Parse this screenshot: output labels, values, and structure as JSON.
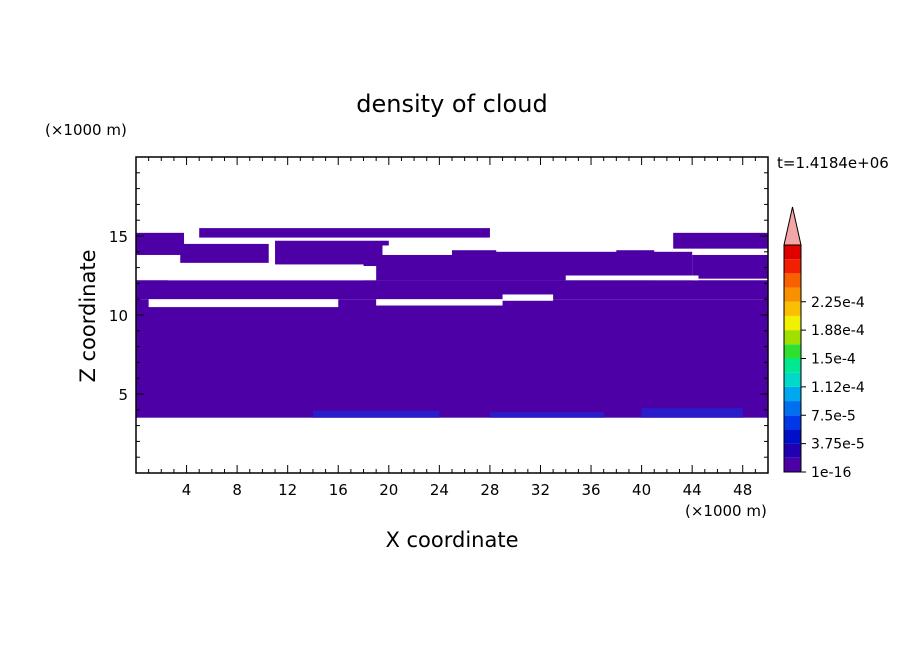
{
  "chart_data": {
    "type": "heatmap",
    "title": "density of cloud",
    "xlabel": "X coordinate",
    "ylabel": "Z coordinate",
    "x_unit": "(×1000 m)",
    "z_unit": "(×1000 m)",
    "time_label": "t=1.4184e+06",
    "xlim": [
      0,
      50
    ],
    "zlim": [
      0,
      20
    ],
    "x_ticks": [
      4,
      8,
      12,
      16,
      20,
      24,
      28,
      32,
      36,
      40,
      44,
      48
    ],
    "z_ticks": [
      5,
      10,
      15
    ],
    "colorbar": {
      "labels": [
        "1e-16",
        "3.75e-5",
        "7.5e-5",
        "1.12e-4",
        "1.5e-4",
        "1.88e-4",
        "2.25e-4"
      ],
      "colors": [
        "#4d00a6",
        "#2000b0",
        "#0010c8",
        "#0038e8",
        "#0070f0",
        "#00a8f0",
        "#00d8c8",
        "#00e890",
        "#30e030",
        "#a0e000",
        "#f0f000",
        "#f8c000",
        "#f89000",
        "#f86000",
        "#f02000",
        "#e00000"
      ],
      "extend_color": "#f4a6a6"
    },
    "fill_color": "#4d00a6",
    "deep_color": "#2a1cc8",
    "cloud_regions": [
      {
        "x": [
          0,
          50
        ],
        "z": [
          3.5,
          11
        ]
      },
      {
        "x": [
          0,
          50
        ],
        "z": [
          11,
          12.2
        ]
      },
      {
        "x": [
          0,
          3.8
        ],
        "z": [
          13.8,
          15.2
        ]
      },
      {
        "x": [
          3.5,
          10.5
        ],
        "z": [
          13.3,
          14.5
        ]
      },
      {
        "x": [
          5,
          28
        ],
        "z": [
          14.9,
          15.5
        ]
      },
      {
        "x": [
          11,
          20
        ],
        "z": [
          13.2,
          14.7
        ]
      },
      {
        "x": [
          19,
          44
        ],
        "z": [
          12.2,
          14
        ]
      },
      {
        "x": [
          44,
          50
        ],
        "z": [
          12.3,
          13.8
        ]
      },
      {
        "x": [
          42.5,
          50
        ],
        "z": [
          14.2,
          15.2
        ]
      },
      {
        "x": [
          18,
          41
        ],
        "z": [
          12.2,
          14.1
        ]
      }
    ],
    "clear_gaps": [
      {
        "x": [
          2.5,
          19
        ],
        "z": [
          12.2,
          13.1
        ]
      },
      {
        "x": [
          34,
          44.5
        ],
        "z": [
          12.2,
          12.5
        ]
      },
      {
        "x": [
          1,
          16
        ],
        "z": [
          10.5,
          11
        ]
      },
      {
        "x": [
          19,
          29
        ],
        "z": [
          10.6,
          11
        ]
      },
      {
        "x": [
          29,
          33
        ],
        "z": [
          10.9,
          11.3
        ]
      },
      {
        "x": [
          19.5,
          25
        ],
        "z": [
          13.8,
          14.4
        ]
      },
      {
        "x": [
          28.5,
          38
        ],
        "z": [
          14,
          14.9
        ]
      }
    ],
    "deep_regions": [
      {
        "x": [
          14,
          24
        ],
        "z": [
          3.5,
          3.95
        ]
      },
      {
        "x": [
          28,
          37
        ],
        "z": [
          3.5,
          3.85
        ]
      },
      {
        "x": [
          40,
          48
        ],
        "z": [
          3.5,
          4.1
        ]
      }
    ]
  }
}
